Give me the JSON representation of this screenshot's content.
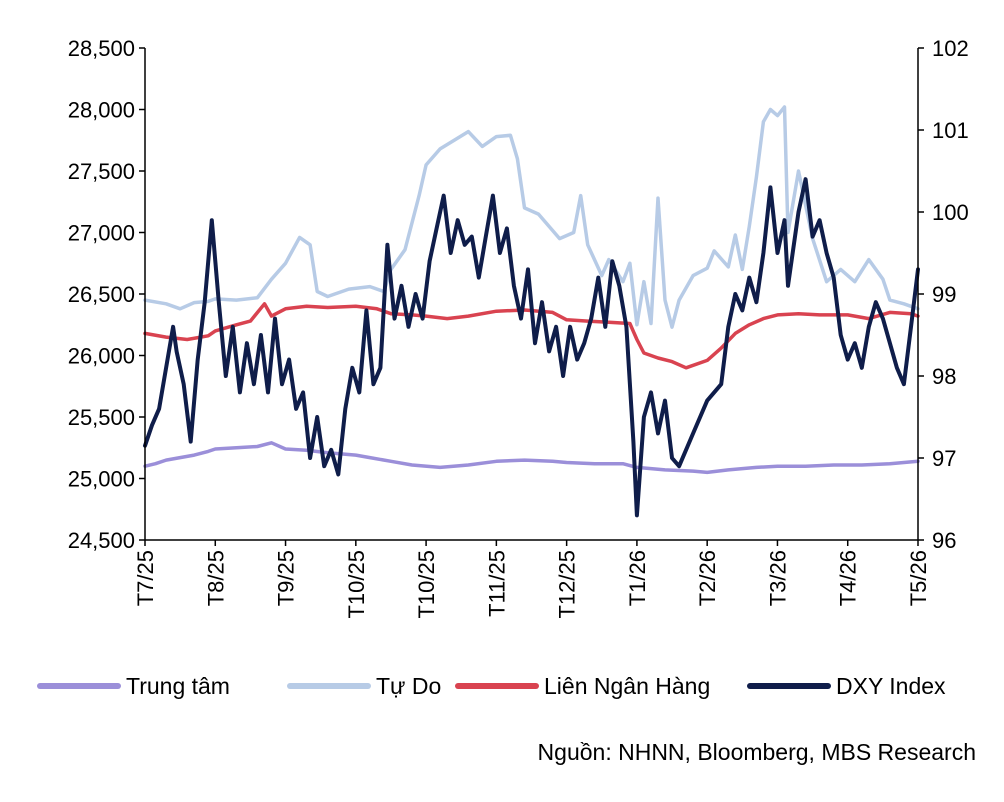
{
  "chart_data": {
    "type": "line",
    "x_ticks": [
      "T7/25",
      "T8/25",
      "T9/25",
      "T10/25",
      "T10/25",
      "T11/25",
      "T12/25",
      "T1/26",
      "T2/26",
      "T3/26",
      "T4/26",
      "T5/26"
    ],
    "y_left": {
      "min": 24500,
      "max": 28500,
      "ticks": [
        "24,500",
        "25,000",
        "25,500",
        "26,000",
        "26,500",
        "27,000",
        "27,500",
        "28,000",
        "28,500"
      ]
    },
    "y_right": {
      "min": 96,
      "max": 102,
      "ticks": [
        "96",
        "97",
        "98",
        "99",
        "100",
        "101",
        "102"
      ]
    },
    "grid": false,
    "legend_position": "bottom",
    "series": [
      {
        "name": "Trung tâm",
        "axis": "left",
        "color": "#9b8fd9",
        "points": [
          [
            0,
            25100
          ],
          [
            0.15,
            25120
          ],
          [
            0.3,
            25150
          ],
          [
            0.5,
            25170
          ],
          [
            0.7,
            25190
          ],
          [
            0.9,
            25220
          ],
          [
            1.0,
            25240
          ],
          [
            1.3,
            25250
          ],
          [
            1.6,
            25260
          ],
          [
            1.8,
            25290
          ],
          [
            2.0,
            25240
          ],
          [
            2.3,
            25230
          ],
          [
            2.6,
            25210
          ],
          [
            3.0,
            25190
          ],
          [
            3.2,
            25170
          ],
          [
            3.5,
            25140
          ],
          [
            3.8,
            25110
          ],
          [
            4.2,
            25090
          ],
          [
            4.6,
            25110
          ],
          [
            5.0,
            25140
          ],
          [
            5.4,
            25150
          ],
          [
            5.8,
            25140
          ],
          [
            6.0,
            25130
          ],
          [
            6.4,
            25120
          ],
          [
            6.8,
            25120
          ],
          [
            7.0,
            25090
          ],
          [
            7.4,
            25070
          ],
          [
            7.8,
            25060
          ],
          [
            8.0,
            25050
          ],
          [
            8.3,
            25070
          ],
          [
            8.7,
            25090
          ],
          [
            9.0,
            25100
          ],
          [
            9.4,
            25100
          ],
          [
            9.8,
            25110
          ],
          [
            10.2,
            25110
          ],
          [
            10.6,
            25120
          ],
          [
            11.0,
            25140
          ]
        ]
      },
      {
        "name": "Tự Do",
        "axis": "left",
        "color": "#b7cbe6",
        "points": [
          [
            0,
            26450
          ],
          [
            0.3,
            26420
          ],
          [
            0.5,
            26380
          ],
          [
            0.7,
            26430
          ],
          [
            0.9,
            26440
          ],
          [
            1.0,
            26460
          ],
          [
            1.3,
            26450
          ],
          [
            1.6,
            26470
          ],
          [
            1.8,
            26620
          ],
          [
            2.0,
            26750
          ],
          [
            2.2,
            26960
          ],
          [
            2.35,
            26900
          ],
          [
            2.45,
            26520
          ],
          [
            2.6,
            26480
          ],
          [
            2.9,
            26540
          ],
          [
            3.2,
            26560
          ],
          [
            3.4,
            26520
          ],
          [
            3.5,
            26700
          ],
          [
            3.7,
            26860
          ],
          [
            3.9,
            27300
          ],
          [
            4.0,
            27550
          ],
          [
            4.2,
            27680
          ],
          [
            4.4,
            27750
          ],
          [
            4.6,
            27820
          ],
          [
            4.8,
            27700
          ],
          [
            5.0,
            27780
          ],
          [
            5.2,
            27790
          ],
          [
            5.3,
            27600
          ],
          [
            5.4,
            27200
          ],
          [
            5.6,
            27150
          ],
          [
            5.9,
            26950
          ],
          [
            6.1,
            27000
          ],
          [
            6.2,
            27300
          ],
          [
            6.3,
            26900
          ],
          [
            6.5,
            26650
          ],
          [
            6.6,
            26780
          ],
          [
            6.8,
            26600
          ],
          [
            6.9,
            26750
          ],
          [
            7.0,
            26250
          ],
          [
            7.1,
            26600
          ],
          [
            7.2,
            26260
          ],
          [
            7.3,
            27280
          ],
          [
            7.4,
            26450
          ],
          [
            7.5,
            26230
          ],
          [
            7.6,
            26450
          ],
          [
            7.8,
            26650
          ],
          [
            8.0,
            26710
          ],
          [
            8.1,
            26850
          ],
          [
            8.3,
            26720
          ],
          [
            8.4,
            26980
          ],
          [
            8.5,
            26700
          ],
          [
            8.6,
            27050
          ],
          [
            8.7,
            27450
          ],
          [
            8.8,
            27900
          ],
          [
            8.9,
            28000
          ],
          [
            9.0,
            27950
          ],
          [
            9.1,
            28020
          ],
          [
            9.15,
            27000
          ],
          [
            9.3,
            27500
          ],
          [
            9.5,
            26950
          ],
          [
            9.7,
            26600
          ],
          [
            9.9,
            26700
          ],
          [
            10.1,
            26600
          ],
          [
            10.3,
            26780
          ],
          [
            10.5,
            26620
          ],
          [
            10.6,
            26450
          ],
          [
            10.8,
            26420
          ],
          [
            11.0,
            26380
          ]
        ]
      },
      {
        "name": "Liên Ngân Hàng",
        "axis": "left",
        "color": "#d94350",
        "points": [
          [
            0,
            26180
          ],
          [
            0.3,
            26150
          ],
          [
            0.6,
            26130
          ],
          [
            0.9,
            26160
          ],
          [
            1.0,
            26200
          ],
          [
            1.3,
            26250
          ],
          [
            1.5,
            26280
          ],
          [
            1.7,
            26420
          ],
          [
            1.8,
            26320
          ],
          [
            2.0,
            26380
          ],
          [
            2.3,
            26400
          ],
          [
            2.6,
            26390
          ],
          [
            3.0,
            26400
          ],
          [
            3.3,
            26380
          ],
          [
            3.5,
            26340
          ],
          [
            3.8,
            26330
          ],
          [
            4.0,
            26320
          ],
          [
            4.3,
            26300
          ],
          [
            4.6,
            26320
          ],
          [
            5.0,
            26360
          ],
          [
            5.4,
            26370
          ],
          [
            5.8,
            26350
          ],
          [
            6.0,
            26290
          ],
          [
            6.3,
            26280
          ],
          [
            6.6,
            26270
          ],
          [
            6.9,
            26260
          ],
          [
            7.0,
            26130
          ],
          [
            7.1,
            26020
          ],
          [
            7.3,
            25980
          ],
          [
            7.5,
            25950
          ],
          [
            7.7,
            25900
          ],
          [
            8.0,
            25960
          ],
          [
            8.2,
            26060
          ],
          [
            8.4,
            26180
          ],
          [
            8.6,
            26250
          ],
          [
            8.8,
            26300
          ],
          [
            9.0,
            26330
          ],
          [
            9.3,
            26340
          ],
          [
            9.6,
            26330
          ],
          [
            10.0,
            26330
          ],
          [
            10.3,
            26300
          ],
          [
            10.6,
            26350
          ],
          [
            10.9,
            26340
          ],
          [
            11.0,
            26320
          ]
        ]
      },
      {
        "name": "DXY Index",
        "axis": "right",
        "color": "#0f1d4a",
        "points": [
          [
            0,
            97.15
          ],
          [
            0.1,
            97.4
          ],
          [
            0.2,
            97.6
          ],
          [
            0.3,
            98.1
          ],
          [
            0.4,
            98.6
          ],
          [
            0.45,
            98.3
          ],
          [
            0.55,
            97.9
          ],
          [
            0.65,
            97.2
          ],
          [
            0.75,
            98.2
          ],
          [
            0.85,
            98.9
          ],
          [
            0.95,
            99.9
          ],
          [
            1.05,
            98.9
          ],
          [
            1.15,
            98.0
          ],
          [
            1.25,
            98.6
          ],
          [
            1.35,
            97.8
          ],
          [
            1.45,
            98.4
          ],
          [
            1.55,
            97.9
          ],
          [
            1.65,
            98.5
          ],
          [
            1.75,
            97.8
          ],
          [
            1.85,
            98.7
          ],
          [
            1.95,
            97.9
          ],
          [
            2.05,
            98.2
          ],
          [
            2.15,
            97.6
          ],
          [
            2.25,
            97.8
          ],
          [
            2.35,
            97.0
          ],
          [
            2.45,
            97.5
          ],
          [
            2.55,
            96.9
          ],
          [
            2.65,
            97.1
          ],
          [
            2.75,
            96.8
          ],
          [
            2.85,
            97.6
          ],
          [
            2.95,
            98.1
          ],
          [
            3.05,
            97.8
          ],
          [
            3.15,
            98.8
          ],
          [
            3.25,
            97.9
          ],
          [
            3.35,
            98.1
          ],
          [
            3.45,
            99.6
          ],
          [
            3.55,
            98.7
          ],
          [
            3.65,
            99.1
          ],
          [
            3.75,
            98.6
          ],
          [
            3.85,
            99.0
          ],
          [
            3.95,
            98.7
          ],
          [
            4.05,
            99.4
          ],
          [
            4.15,
            99.8
          ],
          [
            4.25,
            100.2
          ],
          [
            4.35,
            99.5
          ],
          [
            4.45,
            99.9
          ],
          [
            4.55,
            99.6
          ],
          [
            4.65,
            99.7
          ],
          [
            4.75,
            99.2
          ],
          [
            4.85,
            99.7
          ],
          [
            4.95,
            100.2
          ],
          [
            5.05,
            99.5
          ],
          [
            5.15,
            99.8
          ],
          [
            5.25,
            99.1
          ],
          [
            5.35,
            98.7
          ],
          [
            5.45,
            99.3
          ],
          [
            5.55,
            98.4
          ],
          [
            5.65,
            98.9
          ],
          [
            5.75,
            98.3
          ],
          [
            5.85,
            98.6
          ],
          [
            5.95,
            98.0
          ],
          [
            6.05,
            98.6
          ],
          [
            6.15,
            98.2
          ],
          [
            6.25,
            98.4
          ],
          [
            6.35,
            98.7
          ],
          [
            6.45,
            99.2
          ],
          [
            6.55,
            98.6
          ],
          [
            6.65,
            99.4
          ],
          [
            6.75,
            99.1
          ],
          [
            6.85,
            98.6
          ],
          [
            6.95,
            97.2
          ],
          [
            7.0,
            96.3
          ],
          [
            7.1,
            97.5
          ],
          [
            7.2,
            97.8
          ],
          [
            7.3,
            97.3
          ],
          [
            7.4,
            97.7
          ],
          [
            7.5,
            97.0
          ],
          [
            7.6,
            96.9
          ],
          [
            7.8,
            97.3
          ],
          [
            8.0,
            97.7
          ],
          [
            8.2,
            97.9
          ],
          [
            8.3,
            98.6
          ],
          [
            8.4,
            99.0
          ],
          [
            8.5,
            98.8
          ],
          [
            8.6,
            99.2
          ],
          [
            8.7,
            98.9
          ],
          [
            8.8,
            99.5
          ],
          [
            8.9,
            100.3
          ],
          [
            9.0,
            99.5
          ],
          [
            9.1,
            99.9
          ],
          [
            9.15,
            99.1
          ],
          [
            9.3,
            100.0
          ],
          [
            9.4,
            100.4
          ],
          [
            9.5,
            99.7
          ],
          [
            9.6,
            99.9
          ],
          [
            9.7,
            99.5
          ],
          [
            9.8,
            99.2
          ],
          [
            9.9,
            98.5
          ],
          [
            10.0,
            98.2
          ],
          [
            10.1,
            98.4
          ],
          [
            10.2,
            98.1
          ],
          [
            10.3,
            98.6
          ],
          [
            10.4,
            98.9
          ],
          [
            10.5,
            98.7
          ],
          [
            10.6,
            98.4
          ],
          [
            10.7,
            98.1
          ],
          [
            10.8,
            97.9
          ],
          [
            10.9,
            98.6
          ],
          [
            11.0,
            99.3
          ]
        ]
      }
    ]
  },
  "source_note": "Nguồn: NHNN, Bloomberg, MBS Research"
}
